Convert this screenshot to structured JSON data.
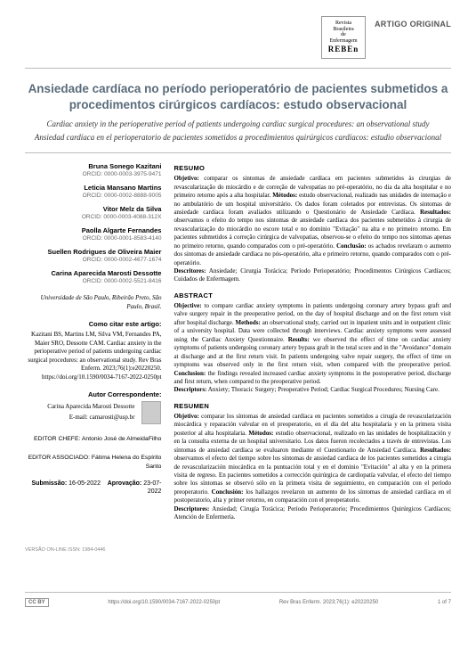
{
  "journal": {
    "line1": "Revista",
    "line2": "Brasileira",
    "line3": "de Enfermagem",
    "short": "REBEn"
  },
  "article_type": "ARTIGO ORIGINAL",
  "title": {
    "pt": "Ansiedade cardíaca no período perioperatório de pacientes submetidos a procedimentos cirúrgicos cardíacos: estudo observacional",
    "en": "Cardiac anxiety in the perioperative period of patients undergoing cardiac surgical procedures: an observational study",
    "es": "Ansiedad cardíaca en el perioperatorio de pacientes sometidos a procedimientos quirúrgicos cardíacos: estudio observacional"
  },
  "authors": [
    {
      "name": "Bruna Sonego Kazitani",
      "orcid": "ORCID: 0000-0003-3975-9471"
    },
    {
      "name": "Leticia Mansano Martins",
      "orcid": "ORCID: 0000-0002-8888-9005"
    },
    {
      "name": "Vitor Melz da Silva",
      "orcid": "ORCID: 0000-0003-4088-312X"
    },
    {
      "name": "Paolla Algarte Fernandes",
      "orcid": "ORCID: 0000-0001-8583-4140"
    },
    {
      "name": "Suellen Rodrigues de Oliveira Maier",
      "orcid": "ORCID: 0000-0002-4677-1674"
    },
    {
      "name": "Carina Aparecida Marosti Dessotte",
      "orcid": "ORCID: 0000-0002-5521-8416"
    }
  ],
  "affiliation": "Universidade de São Paulo, Ribeirão Preto, São Paulo, Brasil.",
  "cite_label": "Como citar este artigo:",
  "cite_text": "Kazitani BS, Martins LM, Silva VM, Fernandes PA, Maier SRO, Dessotte CAM. Cardiac anxiety in the perioperative period of patients undergoing cardiac surgical procedures: an observational study. Rev Bras Enferm. 2023;76(1):e20220250. https://doi.org/10.1590/0034-7167-2022-0250pt",
  "corresp_label": "Autor Correspondente:",
  "corresp_name": "Carina Aparecida Marosti Dessotte",
  "corresp_email": "E-mail: camarosti@usp.br",
  "editor_chief_label": "EDITOR CHEFE:",
  "editor_chief": "Antonio José de AlmeidaFilho",
  "editor_assoc_label": "EDITOR ASSOCIADO:",
  "editor_assoc": "Fátima Helena do Espírito Santo",
  "submission_label": "Submissão:",
  "submission_date": "16-05-2022",
  "approval_label": "Aprovação:",
  "approval_date": "23-07-2022",
  "abstracts": {
    "pt": {
      "head": "RESUMO",
      "body_parts": [
        {
          "label": "Objetivo:",
          "text": " comparar os sintomas de ansiedade cardíaca em pacientes submetidos às cirurgias de revascularização do miocárdio e de correção de valvopatias no pré-operatório, no dia da alta hospitalar e no primeiro retorno após a alta hospitalar. "
        },
        {
          "label": "Métodos:",
          "text": " estudo observacional, realizado nas unidades de internação e no ambulatório de um hospital universitário. Os dados foram coletados por entrevistas. Os sintomas de ansiedade cardíaca foram avaliados utilizando o Questionário de Ansiedade Cardíaca. "
        },
        {
          "label": "Resultados:",
          "text": " observamos o efeito do tempo nos sintomas de ansiedade cardíaca dos pacientes submetidos à cirurgia de revascularização do miocárdio no escore total e no domínio \"Evitação\" na alta e no primeiro retorno. Em pacientes submetidos à correção cirúrgica de valvopatias, observou-se o efeito do tempo nos sintomas apenas no primeiro retorno, quando comparados com o pré-operatório. "
        },
        {
          "label": "Conclusão:",
          "text": " os achados revelaram o aumento dos sintomas de ansiedade cardíaca no pós-operatório, alta e primeiro retorno, quando comparados com o pré-operatório."
        }
      ],
      "desc_label": "Descritores:",
      "desc": " Ansiedade; Cirurgia Torácica; Período Perioperatório; Procedimentos Cirúrgicos Cardíacos; Cuidados de Enfermagem."
    },
    "en": {
      "head": "ABSTRACT",
      "body_parts": [
        {
          "label": "Objective:",
          "text": " to compare cardiac anxiety symptoms in patients undergoing coronary artery bypass graft and valve surgery repair in the preoperative period, on the day of hospital discharge and on the first return visit after hospital discharge. "
        },
        {
          "label": "Methods:",
          "text": " an observational study, carried out in inpatient units and in outpatient clinic of a university hospital. Data were collected through interviews. Cardiac anxiety symptoms were assessed using the Cardiac Anxiety Questionnaire. "
        },
        {
          "label": "Results:",
          "text": " we observed the effect of time on cardiac anxiety symptoms of patients undergoing coronary artery bypass graft in the total score and in the \"Avoidance\" domain at discharge and at the first return visit. In patients undergoing valve repair surgery, the effect of time on symptoms was observed only in the first return visit, when compared with the preoperative period. "
        },
        {
          "label": "Conclusion:",
          "text": " the findings revealed increased cardiac anxiety symptoms in the postoperative period, discharge and first return, when compared to the preoperative period."
        }
      ],
      "desc_label": "Descriptors:",
      "desc": " Anxiety; Thoracic Surgery; Preoperative Period; Cardiac Surgical Procedures; Nursing Care."
    },
    "es": {
      "head": "RESUMEN",
      "body_parts": [
        {
          "label": "Objetivo:",
          "text": " comparar los síntomas de ansiedad cardíaca en pacientes sometidos a cirugía de revascularización miocárdica y reparación valvular en el preoperatorio, en el día del alta hospitalaria y en la primera visita posterior al alta hospitalaria. "
        },
        {
          "label": "Métodos:",
          "text": " estudio observacional, realizado en las unidades de hospitalización y en la consulta externa de un hospital universitario. Los datos fueron recolectados a través de entrevistas. Los síntomas de ansiedad cardíaca se evaluaron mediante el Cuestionario de Ansiedad Cardíaca. "
        },
        {
          "label": "Resultados:",
          "text": " observamos el efecto del tiempo sobre los síntomas de ansiedad cardíaca de los pacientes sometidos a cirugía de revascularización miocárdica en la puntuación total y en el dominio \"Evitación\" al alta y en la primera visita de regreso. En pacientes sometidos a corrección quirúrgica de cardiopatía valvular, el efecto del tiempo sobre los síntomas se observó sólo en la primera visita de seguimiento, en comparación con el período preoperatorio. "
        },
        {
          "label": "Conclusión:",
          "text": " los hallazgos revelaron un aumento de los síntomas de ansiedad cardíaca en el postoperatorio, alta y primer retorno, en comparación con el preoperatorio."
        }
      ],
      "desc_label": "Descriptores:",
      "desc": " Ansiedad; Cirugía Torácica; Período Perioperatorio; Procedimientos Quirúrgicos Cardíacos; Atención de Enfermería."
    }
  },
  "issn_line": "VERSÃO ON-LINE ISSN: 1984-0446",
  "footer": {
    "cc": "CC BY",
    "doi": "https://doi.org/10.1590/0034-7167-2022-0250pt",
    "ref": "Rev Bras Enferm. 2023;76(1): e20220250",
    "page": "1 of 7"
  },
  "colors": {
    "title": "#5a6b7a",
    "text": "#333333",
    "muted": "#666666",
    "border": "#bbbbbb"
  }
}
